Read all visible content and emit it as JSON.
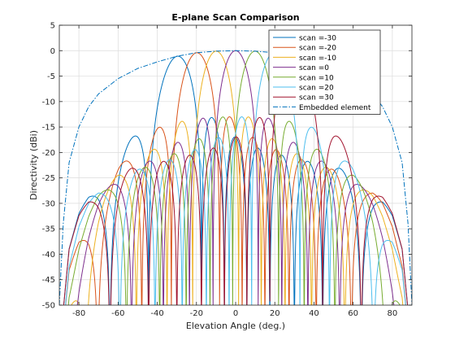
{
  "chart_data": {
    "type": "line",
    "title": "E-plane Scan Comparison",
    "xlabel": "Elevation Angle (deg.)",
    "ylabel": "Directivity (dBi)",
    "xlim": [
      -90,
      90
    ],
    "ylim": [
      -50,
      5
    ],
    "xticks": [
      -80,
      -60,
      -40,
      -20,
      0,
      20,
      40,
      60,
      80
    ],
    "yticks": [
      5,
      0,
      -5,
      -10,
      -15,
      -20,
      -25,
      -30,
      -35,
      -40,
      -45,
      -50
    ],
    "xtick_labels": [
      "-80",
      "-60",
      "-40",
      "-20",
      "0",
      "20",
      "40",
      "60",
      "80"
    ],
    "ytick_labels": [
      "5",
      "0",
      "-5",
      "-10",
      "-15",
      "-20",
      "-25",
      "-30",
      "-35",
      "-40",
      "-45",
      "-50"
    ],
    "grid": true,
    "legend_position": "top-right",
    "array_elements": 10,
    "series": [
      {
        "name": "scan =-30",
        "scan_deg": -30,
        "color": "#0072BD",
        "style": "solid"
      },
      {
        "name": "scan =-20",
        "scan_deg": -20,
        "color": "#D95319",
        "style": "solid"
      },
      {
        "name": "scan =-10",
        "scan_deg": -10,
        "color": "#EDB120",
        "style": "solid"
      },
      {
        "name": "scan =0",
        "scan_deg": 0,
        "color": "#7E2F8E",
        "style": "solid"
      },
      {
        "name": "scan =10",
        "scan_deg": 10,
        "color": "#77AC30",
        "style": "solid"
      },
      {
        "name": "scan =20",
        "scan_deg": 20,
        "color": "#4DBEEE",
        "style": "solid"
      },
      {
        "name": "scan =30",
        "scan_deg": 30,
        "color": "#A2142F",
        "style": "solid"
      },
      {
        "name": "Embedded element",
        "color": "#0072BD",
        "style": "dashdot",
        "x": [
          -90,
          -88,
          -85,
          -80,
          -75,
          -70,
          -60,
          -50,
          -40,
          -30,
          -20,
          -10,
          0,
          10,
          20,
          30,
          40,
          50,
          60,
          70,
          75,
          80,
          85,
          88,
          90
        ],
        "values": [
          -50,
          -34,
          -22,
          -15,
          -11,
          -8.5,
          -5.5,
          -3.5,
          -2.2,
          -1.1,
          -0.4,
          -0.1,
          0,
          -0.1,
          -0.4,
          -1.1,
          -2.2,
          -3.5,
          -5.5,
          -8.5,
          -11,
          -15,
          -22,
          -34,
          -50
        ]
      }
    ]
  }
}
